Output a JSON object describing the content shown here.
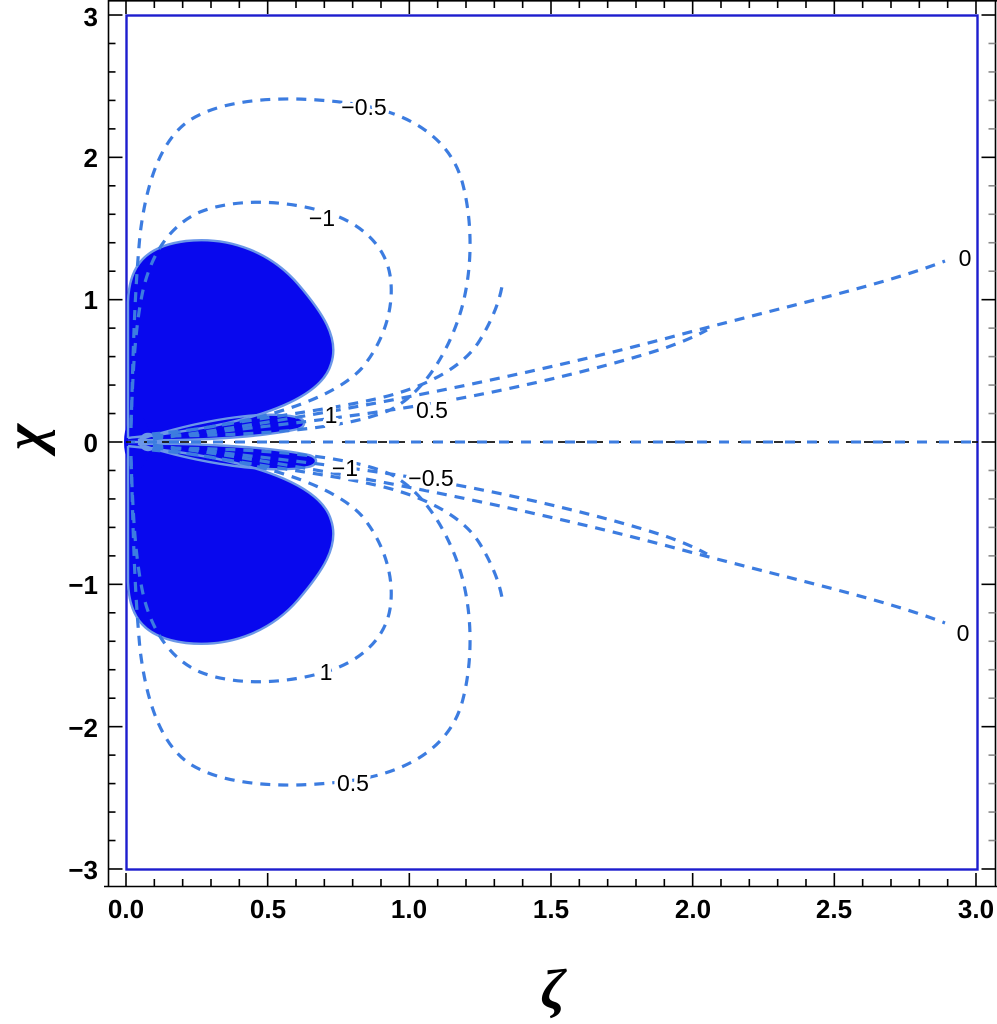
{
  "plot": {
    "kind": "contour-plot",
    "background": "#ffffff",
    "frame_color": "#000000",
    "boundary_rect_color": "#1d1dce",
    "contour_line_color": "#3c7ce0",
    "filled_region_color": "#0808ee",
    "filled_region_edge_color": "#6b97e8",
    "zero_axis_line_color": "#111111"
  },
  "axes": {
    "x": {
      "label": "ζ",
      "ticks": [
        "0.0",
        "0.5",
        "1.0",
        "1.5",
        "2.0",
        "2.5",
        "3.0"
      ]
    },
    "y": {
      "label": "χ",
      "ticks": [
        "3",
        "2",
        "1",
        "0",
        "−1",
        "−2",
        "−3"
      ]
    }
  },
  "contour_labels": [
    {
      "value": "−0.5"
    },
    {
      "value": "−1"
    },
    {
      "value": "1"
    },
    {
      "value": "0.5"
    },
    {
      "value": "−1"
    },
    {
      "value": "−0.5"
    },
    {
      "value": "1"
    },
    {
      "value": "0.5"
    },
    {
      "value": "0"
    },
    {
      "value": "0"
    }
  ],
  "chart_data": {
    "type": "contour",
    "title": "",
    "xlabel": "ζ",
    "ylabel": "χ",
    "xlim": [
      0,
      3
    ],
    "ylim": [
      -3,
      3
    ],
    "x_ticks": [
      0.0,
      0.5,
      1.0,
      1.5,
      2.0,
      2.5,
      3.0
    ],
    "y_ticks": [
      -3,
      -2,
      -1,
      0,
      1,
      2,
      3
    ],
    "x_minor_tick_step": 0.1,
    "y_minor_tick_step": 0.2,
    "grid": false,
    "legend": "none",
    "contour_levels": [
      -1,
      -0.5,
      0,
      0.5,
      1
    ],
    "line_style": "dashed",
    "symmetry": "antisymmetric about y=0 (labels swap sign across the x-axis)",
    "zero_contour": "runs along y=0 (dashed black+blue axis line) and along two nearly straight rays from the origin to (3, 1.3) and (3, -1.3)",
    "labeled_contours": [
      {
        "level": -0.5,
        "x": 0.84,
        "y": 2.36,
        "note": "outer closed loop, upper half"
      },
      {
        "level": -1.0,
        "x": 0.69,
        "y": 1.58,
        "note": "inner closed loop, upper half"
      },
      {
        "level": 1.0,
        "x": 0.72,
        "y": 0.19,
        "note": "fan ray above x-axis"
      },
      {
        "level": 0.5,
        "x": 1.08,
        "y": 0.22,
        "note": "fan ray above x-axis"
      },
      {
        "level": -1.0,
        "x": 0.77,
        "y": -0.18,
        "note": "fan ray below x-axis"
      },
      {
        "level": -0.5,
        "x": 1.08,
        "y": -0.25,
        "note": "fan ray below x-axis"
      },
      {
        "level": 1.0,
        "x": 0.71,
        "y": -1.61,
        "note": "inner closed loop, lower half"
      },
      {
        "level": 0.5,
        "x": 0.8,
        "y": -2.39,
        "note": "outer closed loop, lower half"
      },
      {
        "level": 0.0,
        "x": 2.96,
        "y": 1.31,
        "note": "ray endpoint at right edge"
      },
      {
        "level": 0.0,
        "x": 2.96,
        "y": -1.34,
        "note": "ray endpoint at right edge"
      }
    ],
    "filled_region": {
      "description": "solid blue region of two large mirror lobes plus two thin petals meeting in a cusp on the x-axis near x=0.07",
      "upper_lobe_extent": {
        "x": [
          0,
          0.75
        ],
        "y_top": 1.41
      },
      "lower_lobe_extent": {
        "x": [
          0,
          0.75
        ],
        "y_bottom": -1.43
      },
      "petal_extent": {
        "x": [
          0.05,
          0.65
        ],
        "abs_y": 0.2
      }
    },
    "boundary_rectangle": {
      "x": [
        0,
        3
      ],
      "y": [
        -3,
        3
      ]
    }
  }
}
